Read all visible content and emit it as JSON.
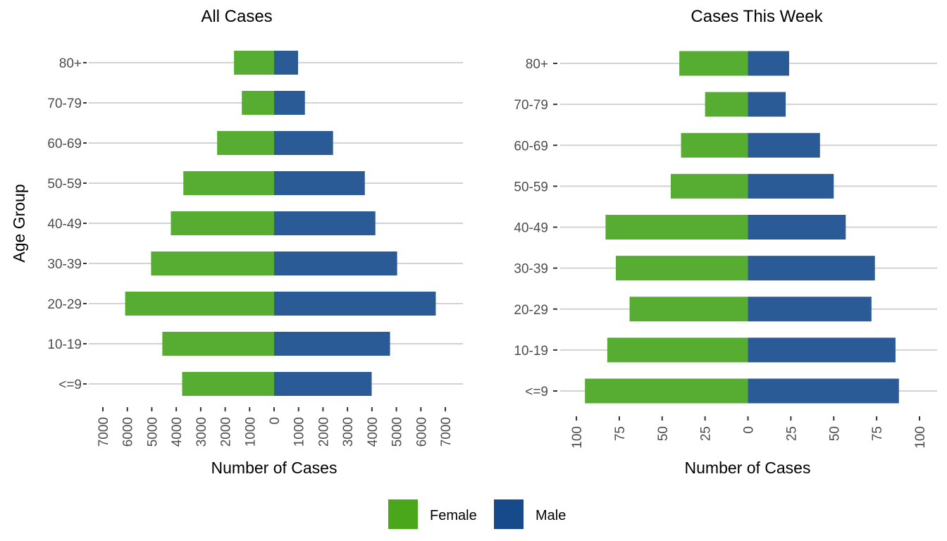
{
  "chart_data": [
    {
      "type": "bar",
      "orientation": "horizontal-diverging",
      "title": "All Cases",
      "xlabel": "Number of Cases",
      "ylabel": "Age Group",
      "categories": [
        "<=9",
        "10-19",
        "20-29",
        "30-39",
        "40-49",
        "50-59",
        "60-69",
        "70-79",
        "80+"
      ],
      "series": [
        {
          "name": "Female",
          "side": "left",
          "values": [
            3760,
            4570,
            6090,
            5030,
            4220,
            3710,
            2330,
            1320,
            1640
          ]
        },
        {
          "name": "Male",
          "side": "right",
          "values": [
            3990,
            4740,
            6610,
            5030,
            4140,
            3710,
            2410,
            1260,
            980
          ]
        }
      ],
      "xlim": [
        -7000,
        7000
      ],
      "xticks": [
        -7000,
        -6000,
        -5000,
        -4000,
        -3000,
        -2000,
        -1000,
        0,
        1000,
        2000,
        3000,
        4000,
        5000,
        6000,
        7000
      ],
      "xtick_labels": [
        "7000",
        "6000",
        "5000",
        "4000",
        "3000",
        "2000",
        "1000",
        "0",
        "1000",
        "2000",
        "3000",
        "4000",
        "5000",
        "6000",
        "7000"
      ],
      "grid": "horizontal"
    },
    {
      "type": "bar",
      "orientation": "horizontal-diverging",
      "title": "Cases This Week",
      "xlabel": "Number of Cases",
      "ylabel": "",
      "categories": [
        "<=9",
        "10-19",
        "20-29",
        "30-39",
        "40-49",
        "50-59",
        "60-69",
        "70-79",
        "80+"
      ],
      "series": [
        {
          "name": "Female",
          "side": "left",
          "values": [
            95,
            82,
            69,
            77,
            83,
            45,
            39,
            25,
            40
          ]
        },
        {
          "name": "Male",
          "side": "right",
          "values": [
            88,
            86,
            72,
            74,
            57,
            50,
            42,
            22,
            24
          ]
        }
      ],
      "xlim": [
        -100,
        100
      ],
      "xticks": [
        -100,
        -75,
        -50,
        -25,
        0,
        25,
        50,
        75,
        100
      ],
      "xtick_labels": [
        "100",
        "75",
        "50",
        "25",
        "0",
        "25",
        "50",
        "75",
        "100"
      ],
      "grid": "horizontal"
    }
  ],
  "legend": {
    "placement": "bottom",
    "items": [
      {
        "label": "Female",
        "color": "#4aa61b"
      },
      {
        "label": "Male",
        "color": "#174a8b"
      }
    ]
  },
  "colors": {
    "female_bar": "#56ad32",
    "male_bar": "#2a5b96"
  }
}
